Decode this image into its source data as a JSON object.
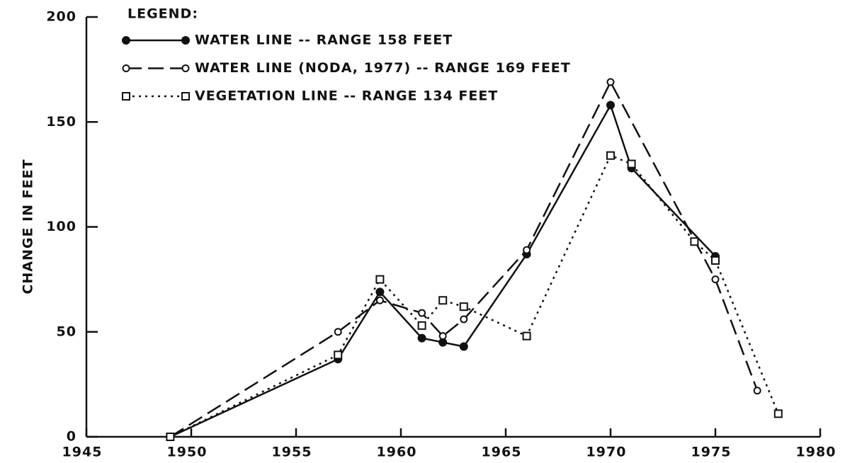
{
  "chart_data": {
    "type": "line",
    "y_label": "CHANGE IN FEET",
    "legend_title": "LEGEND:",
    "xlim": [
      1945,
      1980
    ],
    "xticks": [
      1945,
      1950,
      1955,
      1960,
      1965,
      1970,
      1975,
      1980
    ],
    "ylim": [
      0,
      200
    ],
    "yticks": [
      0,
      50,
      100,
      150,
      200
    ],
    "legend": "top-left",
    "grid": false,
    "series": [
      {
        "name": "WATER LINE -- RANGE 158 FEET",
        "color": "#111111",
        "dash": "solid",
        "marker": "filled-circle",
        "x": [
          1949,
          1957,
          1959,
          1961,
          1962,
          1963,
          1966,
          1970,
          1971,
          1975
        ],
        "values": [
          0,
          37,
          69,
          47,
          45,
          43,
          87,
          158,
          128,
          86
        ]
      },
      {
        "name": "WATER LINE (NODA, 1977) -- RANGE 169 FEET",
        "color": "#111111",
        "dash": "dashed",
        "marker": "open-circle",
        "x": [
          1949,
          1957,
          1959,
          1961,
          1962,
          1963,
          1966,
          1970,
          1975,
          1977
        ],
        "values": [
          0,
          50,
          65,
          59,
          48,
          56,
          89,
          169,
          75,
          22
        ]
      },
      {
        "name": "VEGETATION LINE -- RANGE 134 FEET",
        "color": "#111111",
        "dash": "dotted",
        "marker": "open-square",
        "x": [
          1949,
          1957,
          1959,
          1961,
          1962,
          1963,
          1966,
          1970,
          1971,
          1974,
          1975,
          1978
        ],
        "values": [
          0,
          39,
          75,
          53,
          65,
          62,
          48,
          134,
          130,
          93,
          84,
          11
        ]
      }
    ]
  }
}
